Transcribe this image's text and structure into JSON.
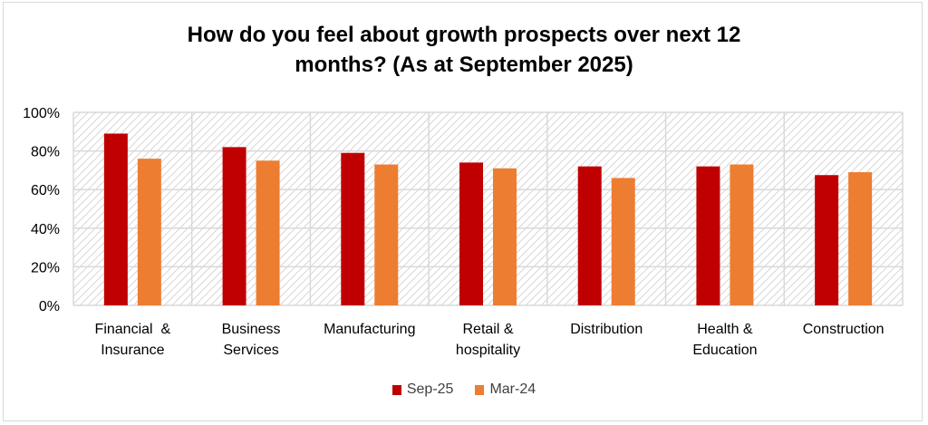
{
  "chart_data": {
    "type": "bar",
    "title": "How do you feel about growth prospects over next 12 months? (As at September 2025)",
    "title_lines": [
      "How do you feel about growth prospects over next 12",
      "months? (As at September 2025)"
    ],
    "categories": [
      "Financial  & Insurance",
      "Business Services",
      "Manufacturing",
      "Retail & hospitality",
      "Distribution",
      "Health & Education",
      "Construction"
    ],
    "category_lines": [
      [
        "Financial  &",
        "Insurance"
      ],
      [
        "Business",
        "Services"
      ],
      [
        "Manufacturing"
      ],
      [
        "Retail &",
        "hospitality"
      ],
      [
        "Distribution"
      ],
      [
        "Health &",
        "Education"
      ],
      [
        "Construction"
      ]
    ],
    "series": [
      {
        "name": "Sep-25",
        "color": "#C00000",
        "values": [
          0.89,
          0.82,
          0.79,
          0.74,
          0.72,
          0.72,
          0.675
        ]
      },
      {
        "name": "Mar-24",
        "color": "#ED7D31",
        "values": [
          0.76,
          0.75,
          0.73,
          0.71,
          0.66,
          0.73,
          0.69
        ]
      }
    ],
    "xlabel": "",
    "ylabel": "",
    "ylim": [
      0,
      1
    ],
    "yticks": [
      0,
      0.2,
      0.4,
      0.6,
      0.8,
      1.0
    ],
    "ytick_labels": [
      "0%",
      "20%",
      "40%",
      "60%",
      "80%",
      "100%"
    ],
    "grid": true,
    "legend_position": "bottom"
  }
}
